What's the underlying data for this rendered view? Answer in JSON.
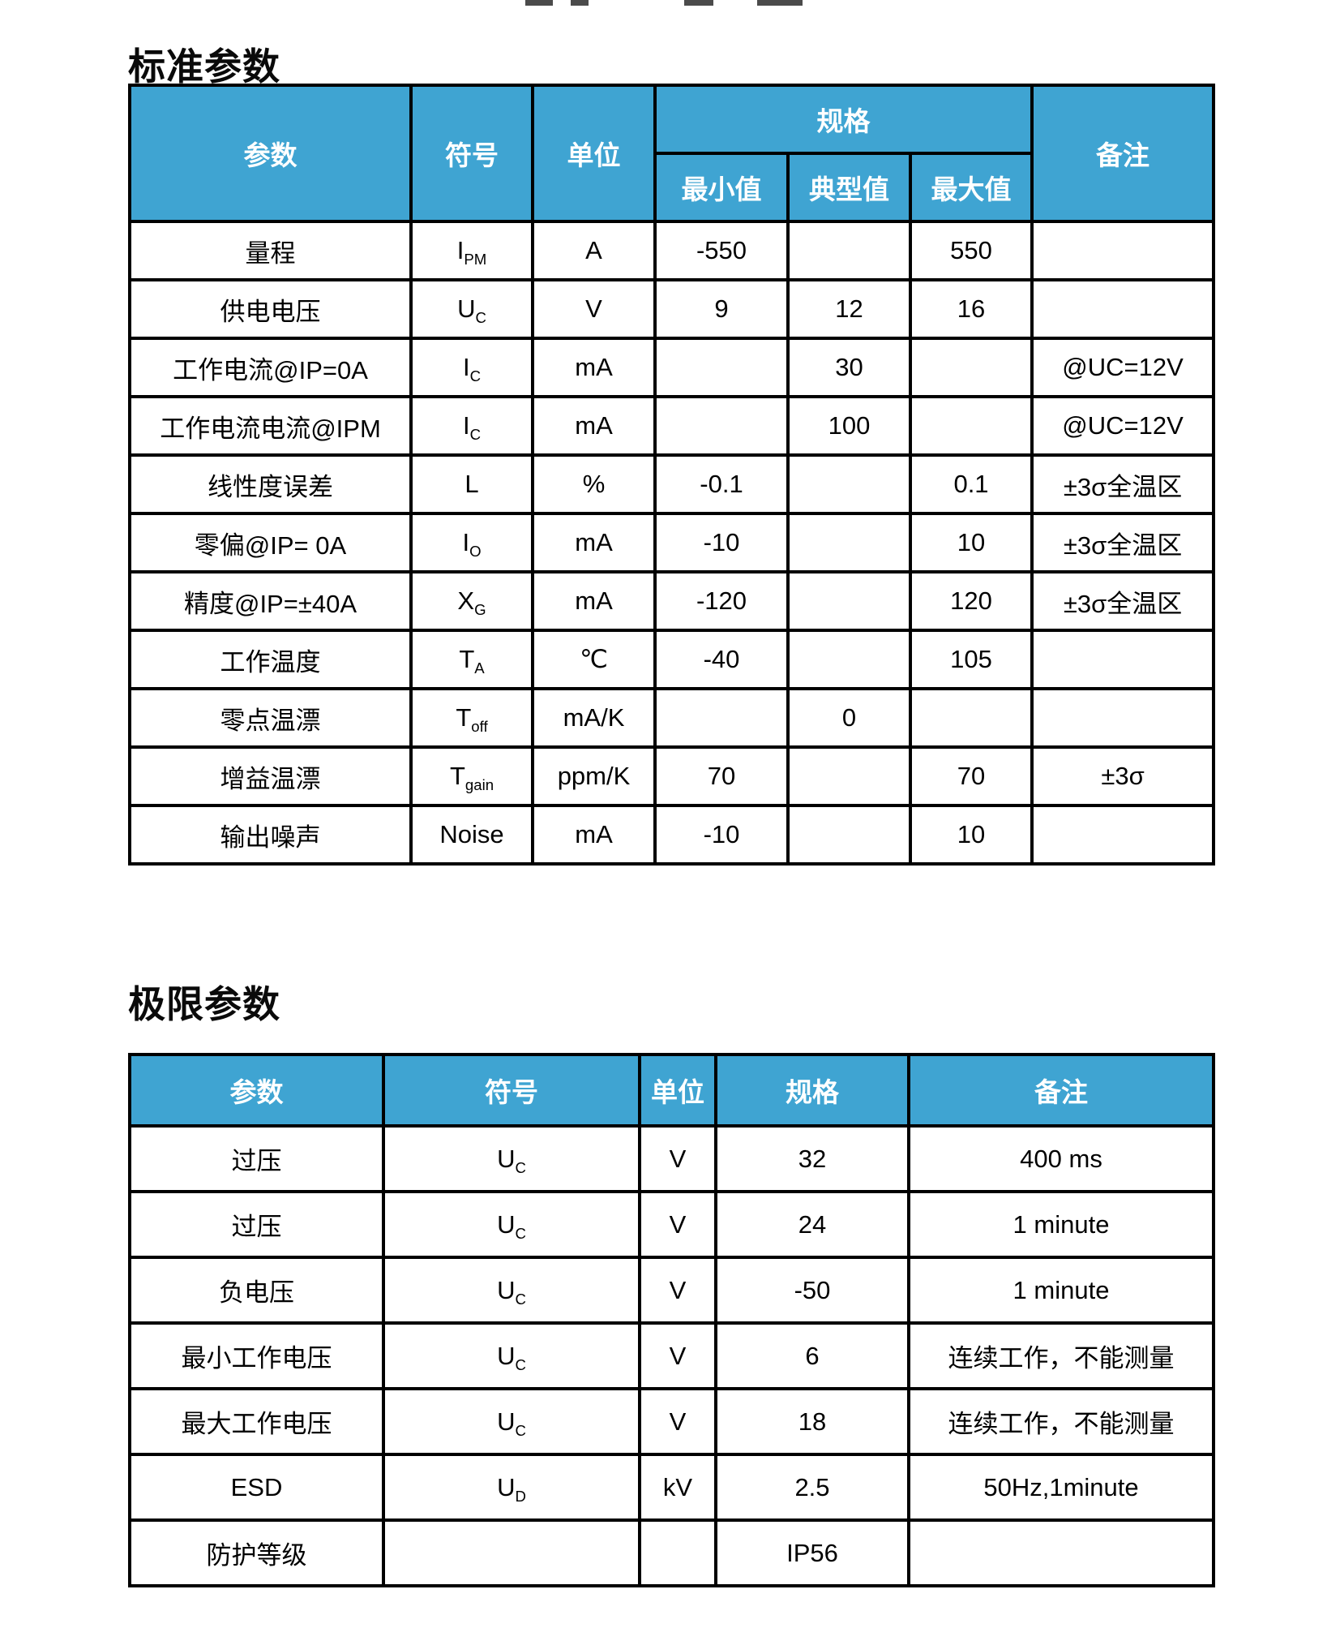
{
  "colors": {
    "header_bg": "#3FA4D2",
    "header_text": "#ffffff",
    "border": "#000000",
    "body_text": "#000000"
  },
  "standard_section": {
    "title": "标准参数",
    "table": {
      "headers": {
        "param": "参数",
        "symbol": "符号",
        "unit": "单位",
        "spec_group": "规格",
        "min": "最小值",
        "typ": "典型值",
        "max": "最大值",
        "note": "备注"
      },
      "rows": [
        {
          "param": "量程",
          "symbol_base": "I",
          "symbol_sub": "PM",
          "unit": "A",
          "min": "-550",
          "typ": "",
          "max": "550",
          "note": ""
        },
        {
          "param": "供电电压",
          "symbol_base": "U",
          "symbol_sub": "C",
          "unit": "V",
          "min": "9",
          "typ": "12",
          "max": "16",
          "note": ""
        },
        {
          "param": "工作电流@IP=0A",
          "symbol_base": "I",
          "symbol_sub": "C",
          "unit": "mA",
          "min": "",
          "typ": "30",
          "max": "",
          "note": "@UC=12V"
        },
        {
          "param": "工作电流电流@IPM",
          "symbol_base": "I",
          "symbol_sub": "C",
          "unit": "mA",
          "min": "",
          "typ": "100",
          "max": "",
          "note": "@UC=12V"
        },
        {
          "param": "线性度误差",
          "symbol_base": "L",
          "symbol_sub": "",
          "unit": "%",
          "min": "-0.1",
          "typ": "",
          "max": "0.1",
          "note": "±3σ全温区"
        },
        {
          "param": "零偏@IP= 0A",
          "symbol_base": "I",
          "symbol_sub": "O",
          "unit": "mA",
          "min": "-10",
          "typ": "",
          "max": "10",
          "note": "±3σ全温区"
        },
        {
          "param": "精度@IP=±40A",
          "symbol_base": "X",
          "symbol_sub": "G",
          "unit": "mA",
          "min": "-120",
          "typ": "",
          "max": "120",
          "note": "±3σ全温区"
        },
        {
          "param": "工作温度",
          "symbol_base": "T",
          "symbol_sub": "A",
          "unit": "℃",
          "min": "-40",
          "typ": "",
          "max": "105",
          "note": ""
        },
        {
          "param": "零点温漂",
          "symbol_base": "T",
          "symbol_sub": "off",
          "unit": "mA/K",
          "min": "",
          "typ": "0",
          "max": "",
          "note": ""
        },
        {
          "param": "增益温漂",
          "symbol_base": "T",
          "symbol_sub": "gain",
          "unit": "ppm/K",
          "min": "70",
          "typ": "",
          "max": "70",
          "note": "±3σ"
        },
        {
          "param": "输出噪声",
          "symbol_base": "Noise",
          "symbol_sub": "",
          "unit": "mA",
          "min": "-10",
          "typ": "",
          "max": "10",
          "note": ""
        }
      ]
    }
  },
  "limit_section": {
    "title": "极限参数",
    "table": {
      "headers": {
        "param": "参数",
        "symbol": "符号",
        "unit": "单位",
        "spec": "规格",
        "note": "备注"
      },
      "rows": [
        {
          "param": "过压",
          "symbol_base": "U",
          "symbol_sub": "C",
          "unit": "V",
          "spec": "32",
          "note": "400 ms"
        },
        {
          "param": "过压",
          "symbol_base": "U",
          "symbol_sub": "C",
          "unit": "V",
          "spec": "24",
          "note": "1 minute"
        },
        {
          "param": "负电压",
          "symbol_base": "U",
          "symbol_sub": "C",
          "unit": "V",
          "spec": "-50",
          "note": "1 minute"
        },
        {
          "param": "最小工作电压",
          "symbol_base": "U",
          "symbol_sub": "C",
          "unit": "V",
          "spec": "6",
          "note": "连续工作，不能测量"
        },
        {
          "param": "最大工作电压",
          "symbol_base": "U",
          "symbol_sub": "C",
          "unit": "V",
          "spec": "18",
          "note": "连续工作，不能测量"
        },
        {
          "param": "ESD",
          "symbol_base": "U",
          "symbol_sub": "D",
          "unit": "kV",
          "spec": "2.5",
          "note": "50Hz,1minute"
        },
        {
          "param": "防护等级",
          "symbol_base": "",
          "symbol_sub": "",
          "unit": "",
          "spec": "IP56",
          "note": ""
        }
      ]
    }
  }
}
